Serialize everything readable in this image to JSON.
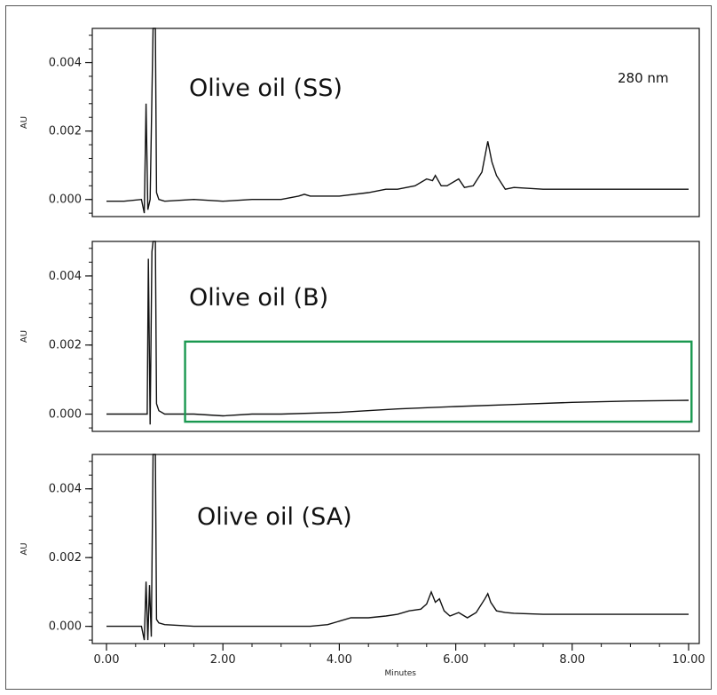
{
  "chart_data": [
    {
      "type": "line",
      "title": "Olive oil (SS)",
      "annotation": "280 nm",
      "ylabel": "AU",
      "xlabel": "",
      "yticks": [
        "0.004",
        "0.002",
        "0.000"
      ],
      "ylim": [
        -0.0005,
        0.005
      ],
      "xlim": [
        0,
        10
      ],
      "series": [
        {
          "x": [
            0.0,
            0.3,
            0.6,
            0.65,
            0.68,
            0.71,
            0.75,
            0.8,
            0.84,
            0.86,
            0.9,
            1.0,
            1.5,
            2.0,
            2.5,
            3.0,
            3.3,
            3.4,
            3.5,
            4.0,
            4.5,
            4.8,
            5.0,
            5.3,
            5.5,
            5.6,
            5.65,
            5.75,
            5.85,
            6.0,
            6.05,
            6.15,
            6.3,
            6.45,
            6.55,
            6.62,
            6.7,
            6.85,
            7.0,
            7.5,
            8.0,
            9.0,
            10.0
          ],
          "y": [
            -5e-05,
            -5e-05,
            0.0,
            -0.0004,
            0.0028,
            -0.0003,
            0.0,
            0.005,
            0.005,
            0.0002,
            0.0,
            -5e-05,
            0.0,
            -5e-05,
            0.0,
            0.0,
            0.0001,
            0.00015,
            0.0001,
            0.0001,
            0.0002,
            0.0003,
            0.0003,
            0.0004,
            0.0006,
            0.00055,
            0.0007,
            0.0004,
            0.0004,
            0.00055,
            0.0006,
            0.00035,
            0.0004,
            0.0008,
            0.0017,
            0.0011,
            0.0007,
            0.0003,
            0.00035,
            0.0003,
            0.0003,
            0.0003,
            0.0003
          ]
        }
      ]
    },
    {
      "type": "line",
      "title": "Olive oil (B)",
      "ylabel": "AU",
      "xlabel": "",
      "yticks": [
        "0.004",
        "0.002",
        "0.000"
      ],
      "ylim": [
        -0.0005,
        0.005
      ],
      "xlim": [
        0,
        10
      ],
      "highlight_box": {
        "x": [
          1.35,
          10.05
        ],
        "y": [
          -0.00022,
          0.0021
        ],
        "color": "#1a9850"
      },
      "series": [
        {
          "x": [
            0.0,
            0.5,
            0.7,
            0.72,
            0.75,
            0.78,
            0.8,
            0.84,
            0.86,
            0.9,
            1.0,
            1.5,
            2.0,
            2.5,
            3.0,
            4.0,
            5.0,
            6.0,
            7.0,
            8.0,
            9.0,
            10.0
          ],
          "y": [
            0.0,
            0.0,
            0.0,
            0.0045,
            -0.0003,
            0.0047,
            0.005,
            0.005,
            0.0003,
            0.0001,
            0.0,
            0.0,
            -5e-05,
            0.0,
            0.0,
            5e-05,
            0.00015,
            0.00022,
            0.00028,
            0.00034,
            0.00038,
            0.0004
          ]
        }
      ]
    },
    {
      "type": "line",
      "title": "Olive oil (SA)",
      "ylabel": "AU",
      "xlabel": "Minutes",
      "yticks": [
        "0.004",
        "0.002",
        "0.000"
      ],
      "xticks": [
        "0.00",
        "2.00",
        "4.00",
        "6.00",
        "8.00",
        "10.00"
      ],
      "ylim": [
        -0.0005,
        0.005
      ],
      "xlim": [
        0,
        10
      ],
      "series": [
        {
          "x": [
            0.0,
            0.3,
            0.6,
            0.65,
            0.68,
            0.71,
            0.74,
            0.77,
            0.8,
            0.84,
            0.86,
            0.9,
            1.0,
            1.5,
            2.0,
            2.5,
            3.0,
            3.5,
            3.8,
            4.0,
            4.2,
            4.5,
            4.8,
            5.0,
            5.2,
            5.4,
            5.5,
            5.58,
            5.65,
            5.72,
            5.8,
            5.9,
            6.05,
            6.2,
            6.35,
            6.5,
            6.55,
            6.6,
            6.7,
            6.85,
            7.0,
            7.5,
            8.0,
            9.0,
            10.0
          ],
          "y": [
            0.0,
            0.0,
            0.0,
            -0.0004,
            0.0013,
            -0.0004,
            0.0012,
            -0.0003,
            0.005,
            0.005,
            0.0002,
            0.0001,
            5e-05,
            0.0,
            0.0,
            0.0,
            0.0,
            0.0,
            5e-05,
            0.00015,
            0.00025,
            0.00025,
            0.0003,
            0.00035,
            0.00045,
            0.0005,
            0.00065,
            0.001,
            0.0007,
            0.0008,
            0.00045,
            0.0003,
            0.0004,
            0.00025,
            0.0004,
            0.0008,
            0.00095,
            0.0007,
            0.00045,
            0.0004,
            0.00038,
            0.00035,
            0.00035,
            0.00035,
            0.00035
          ]
        }
      ]
    }
  ]
}
